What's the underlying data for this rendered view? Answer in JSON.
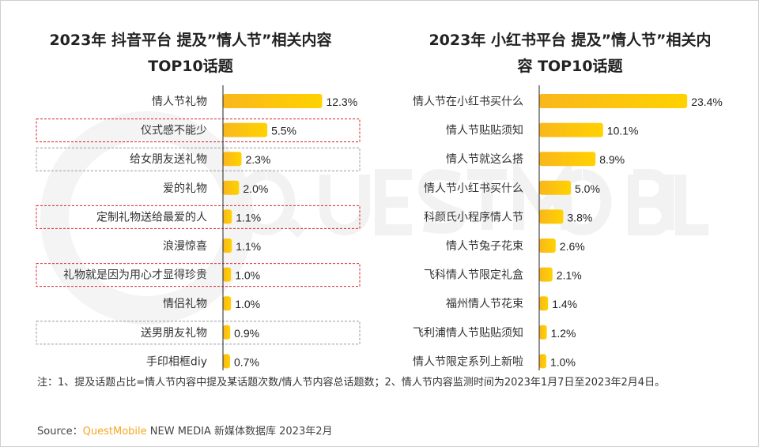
{
  "chart_data": [
    {
      "type": "bar",
      "orientation": "horizontal",
      "title": "2023年 抖音平台 提及”情人节”相关内容TOP10话题",
      "categories": [
        "情人节礼物",
        "仪式感不能少",
        "给女朋友送礼物",
        "爱的礼物",
        "定制礼物送给最爱的人",
        "浪漫惊喜",
        "礼物就是因为用心才显得珍贵",
        "情侣礼物",
        "送男朋友礼物",
        "手印相框diy"
      ],
      "values": [
        12.3,
        5.5,
        2.3,
        2.0,
        1.1,
        1.1,
        1.0,
        1.0,
        0.9,
        0.7
      ],
      "labels": [
        "12.3%",
        "5.5%",
        "2.3%",
        "2.0%",
        "1.1%",
        "1.1%",
        "1.0%",
        "1.0%",
        "0.9%",
        "0.7%"
      ],
      "highlight": [
        "none",
        "red",
        "gray",
        "none",
        "red",
        "none",
        "red",
        "none",
        "gray",
        "none"
      ]
    },
    {
      "type": "bar",
      "orientation": "horizontal",
      "title": "2023年 小红书平台 提及”情人节”相关内容 TOP10话题",
      "categories": [
        "情人节在小红书买什么",
        "情人节贴贴须知",
        "情人节就这么搭",
        "情人节小红书买什么",
        "科颜氏小程序情人节",
        "情人节兔子花束",
        "飞科情人节限定礼盒",
        "福州情人节花束",
        "飞利浦情人节贴贴须知",
        "情人节限定系列上新啦"
      ],
      "values": [
        23.4,
        10.1,
        8.9,
        5.0,
        3.8,
        2.6,
        2.1,
        1.4,
        1.2,
        1.0
      ],
      "labels": [
        "23.4%",
        "10.1%",
        "8.9%",
        "5.0%",
        "3.8%",
        "2.6%",
        "2.1%",
        "1.4%",
        "1.2%",
        "1.0%"
      ]
    }
  ],
  "titles": {
    "left_line1": "2023年 抖音平台 提及”情人节”相关内容",
    "left_line2": "TOP10话题",
    "right_line1": "2023年 小红书平台 提及”情人节”相关内",
    "right_line2": "容 TOP10话题"
  },
  "colors": {
    "bar_start": "#f9b71c",
    "bar_end": "#ffd200",
    "red_box": "#d9252a",
    "gray_box": "#9a9a9a",
    "brand": "#f5a623"
  },
  "watermark": "QUESTMOBILE",
  "note": "注：1、提及话题占比=情人节内容中提及某话题次数/情人节内容总话题数；2、情人节内容监测时间为2023年1月7日至2023年2月4日。",
  "source": {
    "prefix": "Source：",
    "brand": "QuestMobile",
    "rest": " NEW MEDIA 新媒体数据库 2023年2月"
  }
}
